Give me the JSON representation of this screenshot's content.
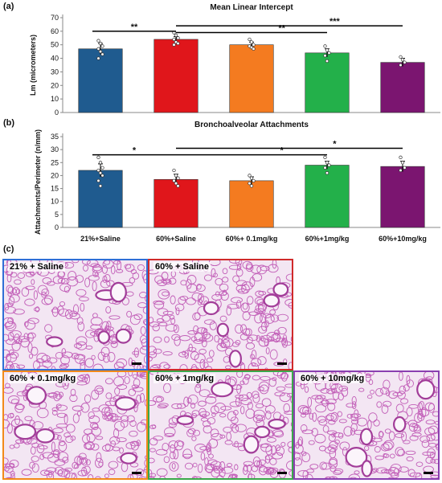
{
  "panels": {
    "a": "(a)",
    "b": "(b)",
    "c": "(c)"
  },
  "chart_data": [
    {
      "type": "bar",
      "title": "Mean Linear Intercept",
      "ylabel": "Lm (micrometers)",
      "ylim": [
        0,
        70
      ],
      "yticks": [
        0,
        10,
        20,
        30,
        40,
        50,
        60,
        70
      ],
      "categories": [
        "21%+Saline",
        "60%+Saline",
        "60%+ 0.1mg/kg",
        "60%+1mg/kg",
        "60%+10mg/kg"
      ],
      "values": [
        47,
        54,
        50,
        44,
        37
      ],
      "errors": [
        4,
        2,
        2,
        3,
        3
      ],
      "colors": [
        "#1f5b8f",
        "#e0161b",
        "#f47b20",
        "#23b04a",
        "#7b1570"
      ],
      "points": [
        [
          53,
          51,
          49,
          47,
          45,
          43,
          40
        ],
        [
          59,
          57,
          55,
          54,
          52,
          51,
          50
        ],
        [
          54,
          52,
          50,
          49,
          48,
          47
        ],
        [
          49,
          46,
          44,
          42,
          38
        ],
        [
          41,
          39,
          37,
          35
        ]
      ],
      "significance": [
        {
          "from": 0,
          "to": 1,
          "label": "**",
          "y": 60
        },
        {
          "from": 1,
          "to": 3,
          "label": "**",
          "y": 59
        },
        {
          "from": 1,
          "to": 4,
          "label": "***",
          "y": 64
        }
      ]
    },
    {
      "type": "bar",
      "title": "Bronchoalveolar Attachments",
      "ylabel": "Attachments/Perimeter (n/mm)",
      "ylim": [
        0,
        35
      ],
      "yticks": [
        0,
        5,
        10,
        15,
        20,
        25,
        30,
        35
      ],
      "categories": [
        "21%+Saline",
        "60%+Saline",
        "60%+ 0.1mg/kg",
        "60%+1mg/kg",
        "60%+10mg/kg"
      ],
      "values": [
        22,
        18.5,
        18,
        24,
        23.5
      ],
      "errors": [
        2.5,
        2,
        1.5,
        1.5,
        2
      ],
      "colors": [
        "#1f5b8f",
        "#e0161b",
        "#f47b20",
        "#23b04a",
        "#7b1570"
      ],
      "points": [
        [
          27,
          25,
          23,
          22,
          21,
          20,
          18,
          16
        ],
        [
          22,
          20,
          19,
          18,
          17,
          16
        ],
        [
          20,
          19,
          18,
          17,
          16
        ],
        [
          27,
          25,
          24,
          23,
          21
        ],
        [
          27,
          25,
          23,
          22
        ]
      ],
      "significance": [
        {
          "from": 0,
          "to": 1,
          "label": "*",
          "y": 28
        },
        {
          "from": 1,
          "to": 3,
          "label": "*",
          "y": 28
        },
        {
          "from": 1,
          "to": 4,
          "label": "*",
          "y": 30.5
        }
      ]
    }
  ],
  "micrographs": [
    {
      "label": "21% + Saline",
      "border": "#2f6fd6"
    },
    {
      "label": "60% + Saline",
      "border": "#d02a2a"
    },
    {
      "label": "60% + 0.1mg/kg",
      "border": "#f28a1a"
    },
    {
      "label": "60% + 1mg/kg",
      "border": "#3aa84a"
    },
    {
      "label": "60% + 10mg/kg",
      "border": "#8a3fb0"
    }
  ]
}
